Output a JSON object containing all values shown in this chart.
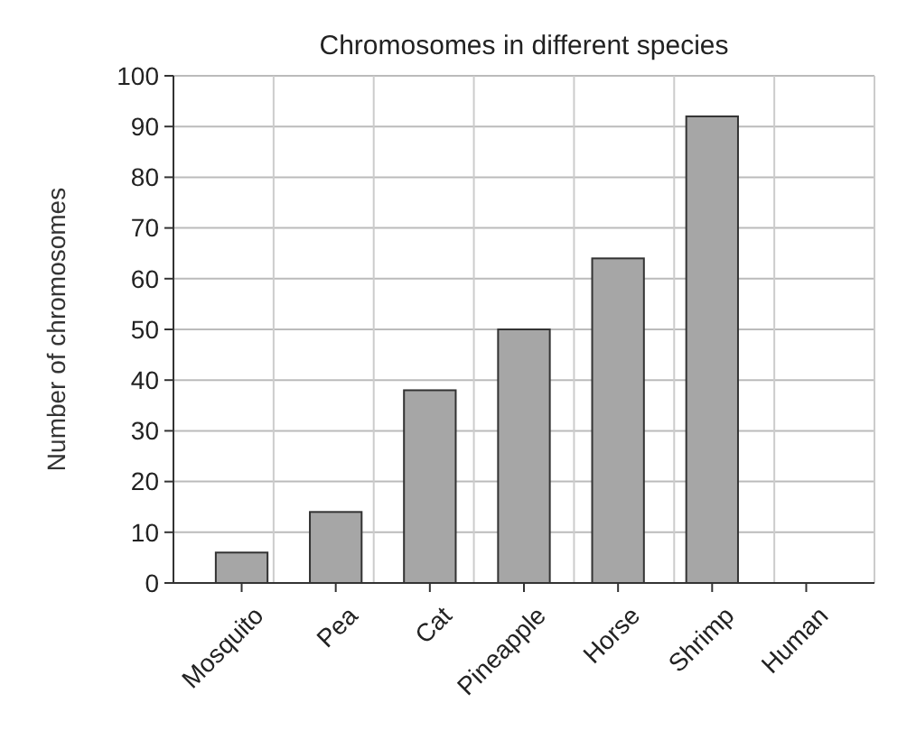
{
  "chart_data": {
    "type": "bar",
    "title": "Chromosomes in different species",
    "ylabel": "Number of chromosomes",
    "categories": [
      "Mosquito",
      "Pea",
      "Cat",
      "Pineapple",
      "Horse",
      "Shrimp",
      "Human"
    ],
    "values": [
      6,
      14,
      38,
      50,
      64,
      92,
      null
    ],
    "color": "#a6a6a6",
    "ylim": [
      0,
      100
    ],
    "yticks": [
      0,
      10,
      20,
      30,
      40,
      50,
      60,
      70,
      80,
      90,
      100
    ],
    "grid": true
  }
}
